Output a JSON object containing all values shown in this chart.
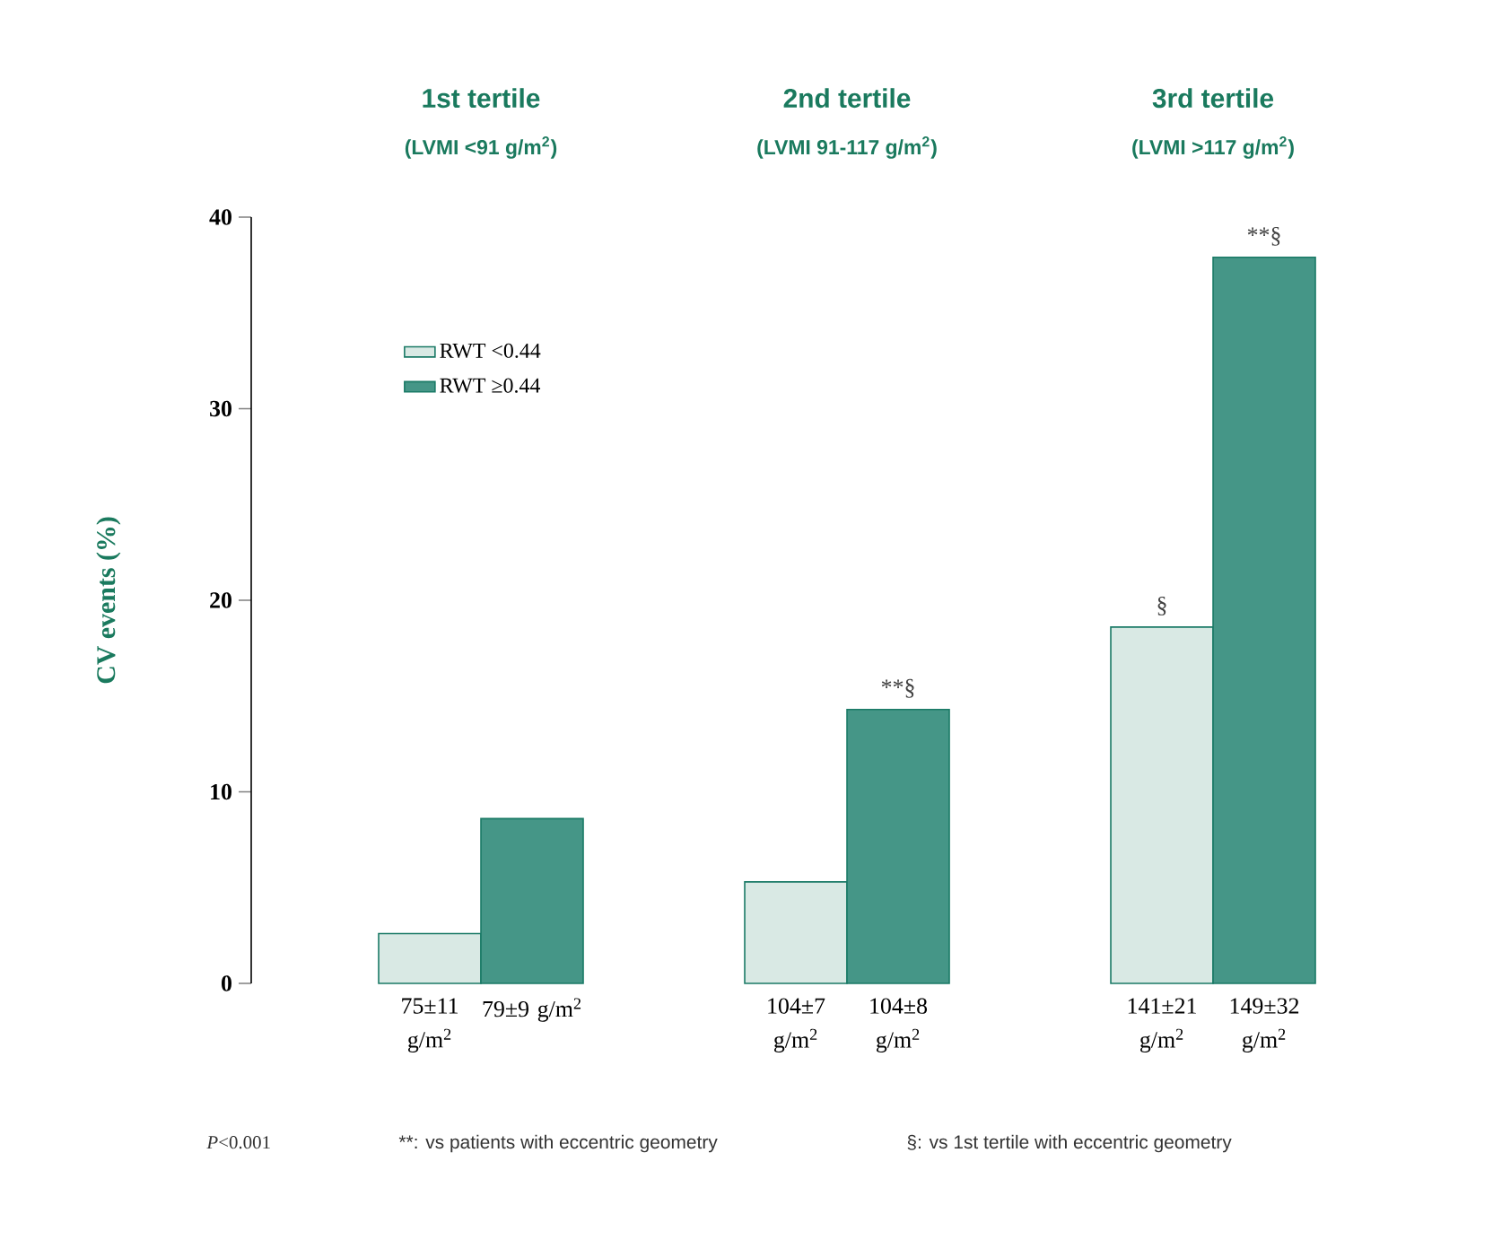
{
  "chart_data": {
    "type": "bar",
    "categories": [
      "1st tertile",
      "2nd tertile",
      "3rd tertile"
    ],
    "ylabel": "CV events (%)",
    "ylim": [
      0,
      40
    ],
    "yticks": [
      0,
      10,
      20,
      30,
      40
    ],
    "legend": "top left",
    "series": [
      {
        "name": "RWT <0.44",
        "color": "#d9e9e4",
        "values": [
          2.6,
          5.3,
          18.6
        ]
      },
      {
        "name": "RWT ≥0.44",
        "color": "#459687",
        "values": [
          8.6,
          14.3,
          37.9
        ]
      }
    ],
    "annotations": [
      "(LVMI <91 g/m$^{2}$)",
      "(LVMI 91-117 g/m$^{2}$)",
      "(LVMI >117 g/m$^{2}$)",
      "75±11 g/m$^{2}$",
      "79±9 g/m$^{2}$",
      "104±7 g/m$^{2}$",
      "104±8 g/m$^{2}$",
      "141±21 g/m$^{2}$",
      "149±32 g/m$^{2}$",
      {
        "text": "**§",
        "x": "2nd tertile",
        "y": 14.3
      },
      {
        "text": "§",
        "x": "3rd tertile",
        "y": 18.6
      },
      {
        "text": "**§",
        "x": "3rd tertile",
        "y": 37.9
      },
      "*P*<0.001",
      "**: vs patients with eccentric geometry",
      "§: vs 1st tertile with eccentric geometry"
    ]
  }
}
